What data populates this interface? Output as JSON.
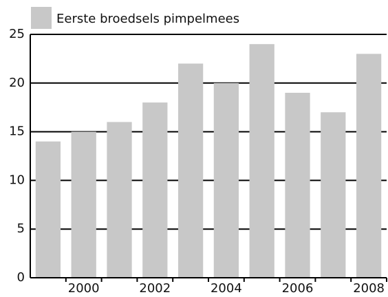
{
  "chart_data": {
    "type": "bar",
    "series": [
      {
        "name": "Eerste broedsels pimpelmees",
        "color": "#c8c8c8",
        "values": [
          14,
          15,
          16,
          18,
          22,
          20,
          24,
          19,
          17,
          23
        ]
      }
    ],
    "categories": [
      null,
      "2000",
      null,
      "2002",
      null,
      "2004",
      null,
      "2006",
      null,
      "2008"
    ],
    "ylim": [
      0,
      25
    ],
    "yticks": [
      0,
      5,
      10,
      15,
      20,
      25
    ],
    "grid": true,
    "legend": "top-left"
  }
}
